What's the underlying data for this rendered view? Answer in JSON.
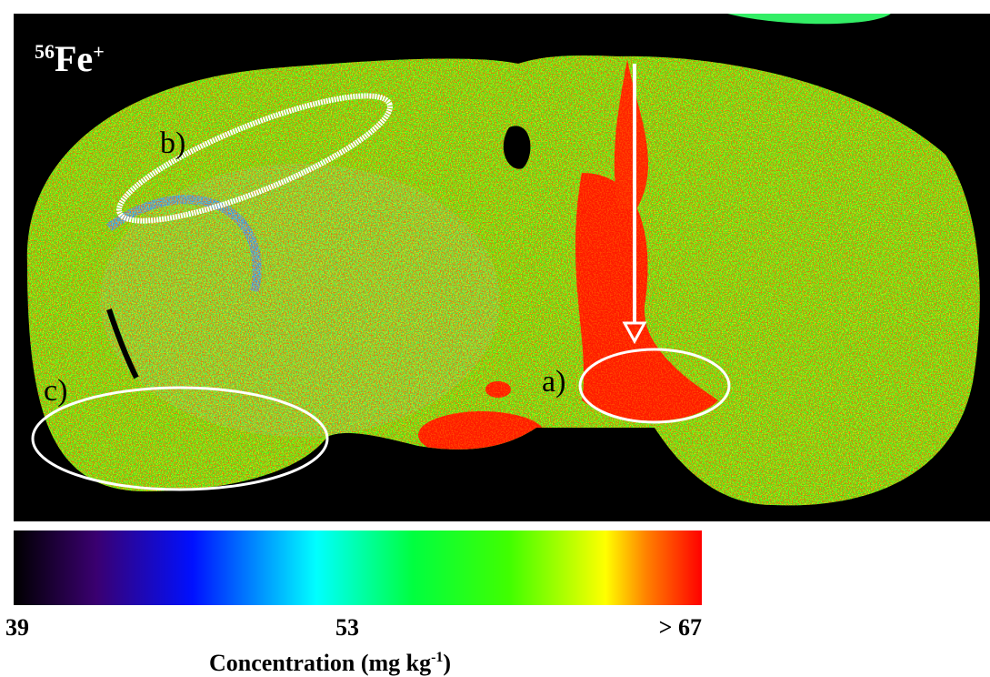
{
  "panel_label": {
    "mass": "56",
    "element": "Fe",
    "charge": "+"
  },
  "annotations": [
    "a)",
    "b)",
    "c)"
  ],
  "colorbar": {
    "tick_labels": [
      "39",
      "53",
      "> 67"
    ],
    "title": {
      "text": "Concentration (mg kg",
      "exponent": "-1",
      "close": ")"
    }
  }
}
